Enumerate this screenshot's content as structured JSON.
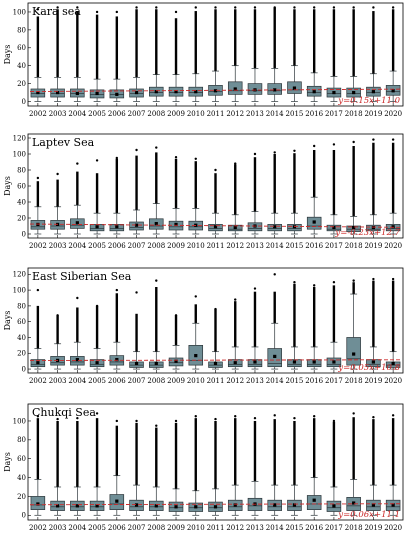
{
  "figure": {
    "colors": {
      "box_fill": "#6f8e96",
      "box_edge": "#2b3438",
      "trend": "#cc2a2a",
      "background": "#ffffff"
    }
  },
  "chart_data": [
    {
      "type": "box",
      "title": "Kara sea",
      "ylabel": "Days",
      "ylim": [
        -5,
        110
      ],
      "yticks": [
        0,
        20,
        40,
        60,
        80,
        100
      ],
      "categories": [
        "2002",
        "2003",
        "2004",
        "2005",
        "2006",
        "2007",
        "2008",
        "2009",
        "2010",
        "2011",
        "2012",
        "2013",
        "2014",
        "2015",
        "2016",
        "2017",
        "2018",
        "2019",
        "2020"
      ],
      "q1": [
        5,
        5,
        5,
        4,
        4,
        5,
        6,
        6,
        6,
        7,
        8,
        8,
        8,
        9,
        6,
        5,
        5,
        6,
        7
      ],
      "median": [
        9,
        9,
        9,
        8,
        8,
        9,
        10,
        10,
        10,
        11,
        12,
        12,
        12,
        13,
        10,
        9,
        9,
        10,
        11
      ],
      "q3": [
        14,
        14,
        14,
        13,
        13,
        14,
        16,
        16,
        16,
        18,
        22,
        20,
        20,
        22,
        17,
        15,
        15,
        16,
        18
      ],
      "mean": [
        10,
        10,
        9,
        9,
        8,
        10,
        11,
        11,
        11,
        12,
        14,
        13,
        13,
        15,
        11,
        10,
        10,
        11,
        12
      ],
      "wlow": [
        0,
        0,
        0,
        0,
        0,
        0,
        0,
        0,
        0,
        0,
        0,
        0,
        0,
        0,
        0,
        0,
        0,
        0,
        0
      ],
      "whigh": [
        27,
        27,
        27,
        25,
        25,
        27,
        30,
        30,
        31,
        34,
        40,
        37,
        37,
        40,
        32,
        28,
        28,
        31,
        34
      ],
      "fmax": [
        95,
        103,
        101,
        97,
        95,
        103,
        103,
        93,
        101,
        103,
        103,
        103,
        105,
        103,
        103,
        103,
        103,
        101,
        103
      ],
      "omax": [
        103,
        105,
        105,
        100,
        100,
        105,
        105,
        100,
        105,
        105,
        105,
        105,
        105,
        105,
        105,
        105,
        105,
        105,
        105
      ],
      "trend": {
        "equation": "y=0.15x+11.0",
        "slope": 0.15,
        "intercept": 11.0
      }
    },
    {
      "type": "box",
      "title": "Laptev Sea",
      "ylabel": "Days",
      "ylim": [
        -5,
        125
      ],
      "yticks": [
        0,
        20,
        40,
        60,
        80,
        100,
        120
      ],
      "categories": [
        "2002",
        "2003",
        "2004",
        "2005",
        "2006",
        "2007",
        "2008",
        "2009",
        "2010",
        "2011",
        "2012",
        "2013",
        "2014",
        "2015",
        "2016",
        "2017",
        "2018",
        "2019",
        "2020"
      ],
      "q1": [
        6,
        6,
        7,
        4,
        4,
        5,
        6,
        5,
        5,
        4,
        4,
        4,
        4,
        4,
        6,
        4,
        3,
        4,
        4
      ],
      "median": [
        9,
        10,
        11,
        7,
        7,
        8,
        10,
        9,
        9,
        7,
        6,
        7,
        7,
        7,
        10,
        6,
        6,
        6,
        7
      ],
      "q3": [
        17,
        17,
        19,
        12,
        12,
        15,
        19,
        16,
        16,
        12,
        11,
        14,
        12,
        12,
        21,
        11,
        10,
        11,
        12
      ],
      "mean": [
        12,
        12,
        14,
        9,
        9,
        11,
        13,
        12,
        11,
        9,
        8,
        10,
        9,
        9,
        15,
        8,
        8,
        8,
        9
      ],
      "wlow": [
        0,
        0,
        0,
        0,
        0,
        0,
        0,
        0,
        0,
        0,
        0,
        0,
        0,
        0,
        0,
        0,
        0,
        0,
        0
      ],
      "whigh": [
        34,
        34,
        36,
        26,
        26,
        30,
        38,
        32,
        32,
        26,
        24,
        28,
        26,
        26,
        46,
        24,
        22,
        24,
        26
      ],
      "fmax": [
        66,
        68,
        78,
        76,
        94,
        98,
        102,
        94,
        91,
        76,
        87,
        96,
        100,
        101,
        105,
        105,
        110,
        114,
        114
      ],
      "omax": [
        70,
        75,
        88,
        92,
        95,
        105,
        108,
        96,
        94,
        80,
        88,
        100,
        102,
        104,
        110,
        112,
        115,
        118,
        118
      ],
      "trend": {
        "equation": "y=-0.23x+12.7",
        "slope": -0.23,
        "intercept": 12.7
      }
    },
    {
      "type": "box",
      "title": "East Siberian Sea",
      "ylabel": "Days",
      "ylim": [
        -5,
        128
      ],
      "yticks": [
        0,
        20,
        40,
        60,
        80,
        100,
        120
      ],
      "categories": [
        "2002",
        "2003",
        "2004",
        "2005",
        "2006",
        "2007",
        "2008",
        "2009",
        "2010",
        "2011",
        "2012",
        "2013",
        "2014",
        "2015",
        "2016",
        "2017",
        "2018",
        "2019",
        "2020"
      ],
      "q1": [
        3,
        5,
        5,
        3,
        5,
        2,
        2,
        4,
        5,
        2,
        3,
        3,
        3,
        3,
        3,
        3,
        5,
        3,
        2
      ],
      "median": [
        6,
        8,
        9,
        6,
        9,
        5,
        5,
        8,
        11,
        5,
        6,
        6,
        7,
        6,
        6,
        6,
        13,
        6,
        5
      ],
      "q3": [
        12,
        16,
        16,
        12,
        17,
        9,
        9,
        14,
        30,
        9,
        12,
        12,
        26,
        12,
        12,
        14,
        40,
        12,
        9
      ],
      "mean": [
        8,
        11,
        12,
        8,
        12,
        7,
        7,
        10,
        17,
        7,
        8,
        9,
        16,
        9,
        9,
        9,
        19,
        9,
        7
      ],
      "wlow": [
        0,
        0,
        0,
        0,
        0,
        0,
        0,
        0,
        0,
        0,
        0,
        0,
        0,
        0,
        0,
        0,
        0,
        0,
        0
      ],
      "whigh": [
        26,
        32,
        34,
        26,
        34,
        22,
        22,
        30,
        58,
        22,
        28,
        28,
        58,
        28,
        28,
        34,
        95,
        28,
        22
      ],
      "fmax": [
        80,
        68,
        78,
        80,
        96,
        70,
        104,
        68,
        82,
        76,
        86,
        98,
        98,
        108,
        104,
        106,
        110,
        112,
        112
      ],
      "omax": [
        100,
        68,
        90,
        80,
        100,
        97,
        112,
        68,
        92,
        76,
        88,
        102,
        120,
        110,
        106,
        110,
        112,
        114,
        114
      ],
      "trend": {
        "equation": "y=0.05x+10.8",
        "slope": 0.05,
        "intercept": 10.8
      }
    },
    {
      "type": "box",
      "title": "Chukqi Sea",
      "ylabel": "Days",
      "ylim": [
        -5,
        118
      ],
      "yticks": [
        0,
        20,
        40,
        60,
        80,
        100
      ],
      "categories": [
        "2002",
        "2003",
        "2004",
        "2005",
        "2006",
        "2007",
        "2008",
        "2009",
        "2010",
        "2011",
        "2012",
        "2013",
        "2014",
        "2015",
        "2016",
        "2017",
        "2018",
        "2019",
        "2020"
      ],
      "q1": [
        6,
        5,
        5,
        5,
        6,
        5,
        5,
        4,
        4,
        4,
        5,
        5,
        5,
        5,
        6,
        4,
        5,
        5,
        5
      ],
      "median": [
        11,
        9,
        9,
        9,
        12,
        9,
        9,
        8,
        8,
        8,
        9,
        10,
        9,
        9,
        12,
        8,
        10,
        9,
        9
      ],
      "q3": [
        20,
        15,
        15,
        15,
        22,
        16,
        15,
        14,
        13,
        14,
        16,
        18,
        16,
        16,
        21,
        15,
        19,
        16,
        16
      ],
      "mean": [
        12,
        10,
        10,
        10,
        15,
        11,
        10,
        9,
        9,
        9,
        11,
        12,
        11,
        11,
        16,
        10,
        13,
        11,
        11
      ],
      "wlow": [
        0,
        0,
        0,
        0,
        0,
        0,
        0,
        0,
        0,
        0,
        0,
        0,
        0,
        0,
        0,
        0,
        0,
        0,
        0
      ],
      "whigh": [
        38,
        30,
        30,
        30,
        42,
        32,
        30,
        28,
        26,
        28,
        32,
        36,
        32,
        32,
        40,
        30,
        38,
        32,
        32
      ],
      "fmax": [
        103,
        100,
        100,
        103,
        95,
        98,
        93,
        98,
        103,
        100,
        103,
        100,
        102,
        100,
        103,
        99,
        104,
        102,
        103
      ],
      "omax": [
        105,
        102,
        103,
        108,
        100,
        100,
        95,
        100,
        105,
        102,
        105,
        103,
        106,
        103,
        105,
        100,
        108,
        104,
        106
      ],
      "trend": {
        "equation": "y=0.06x+11.1",
        "slope": 0.06,
        "intercept": 11.1
      }
    }
  ]
}
